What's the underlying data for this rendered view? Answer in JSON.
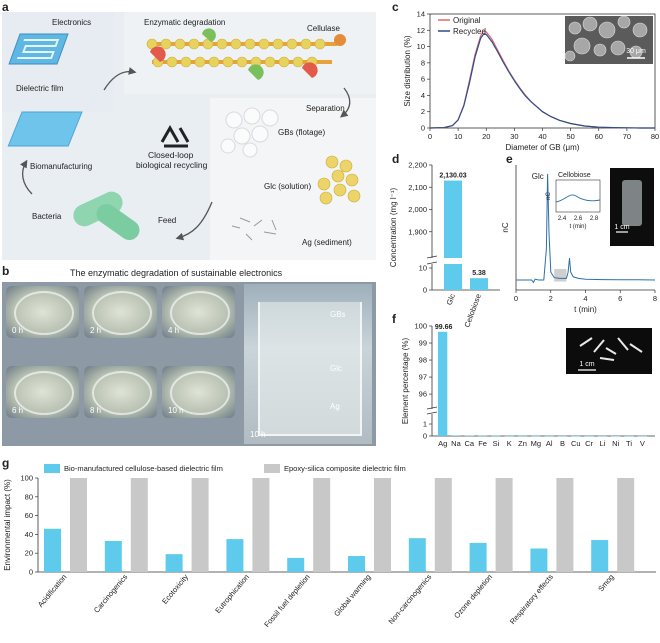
{
  "panels": {
    "a": "a",
    "b": "b",
    "c": "c",
    "d": "d",
    "e": "e",
    "f": "f",
    "g": "g"
  },
  "schematic": {
    "electronics": "Electronics",
    "enzymatic": "Enzymatic degradation",
    "cellulase": "Cellulase",
    "dielectric": "Dielectric film",
    "separation": "Separation",
    "closed_loop_1": "Closed-loop",
    "closed_loop_2": "biological recycling",
    "gbs": "GBs (flotage)",
    "biomanufacturing": "Biomanufacturing",
    "glc": "Glc (solution)",
    "bacteria": "Bacteria",
    "feed": "Feed",
    "ag": "Ag (sediment)",
    "recycle_icon": "recycle-icon"
  },
  "photos": {
    "title": "The enzymatic degradation of sustainable electronics",
    "times": [
      "0 h",
      "2 h",
      "4 h",
      "6 h",
      "8 h",
      "10 h"
    ],
    "beaker_time": "10 h",
    "beaker_labels": [
      "GBs",
      "Glc",
      "Ag"
    ]
  },
  "colors": {
    "original": "#e4656b",
    "recycled": "#2c4f8a",
    "cyan": "#5fcbec",
    "gray": "#c8c8c8",
    "ion_trace": "#2e6fa8"
  },
  "chart_data": [
    {
      "id": "c",
      "type": "line",
      "xlabel": "Diameter of GB (μm)",
      "ylabel": "Size distribution (%)",
      "xlim": [
        0,
        80
      ],
      "ylim": [
        0,
        14
      ],
      "xticks": [
        "0",
        "10",
        "20",
        "30",
        "40",
        "50",
        "60",
        "70",
        "80"
      ],
      "yticks": [
        "0",
        "2",
        "4",
        "6",
        "8",
        "10",
        "12",
        "14"
      ],
      "legend": "top-left",
      "inset_scale": "30 μm",
      "series": [
        {
          "name": "Original",
          "x": [
            0,
            5,
            8,
            10,
            12,
            14,
            16,
            18,
            19,
            20,
            22,
            24,
            26,
            28,
            30,
            32,
            34,
            36,
            38,
            40,
            43,
            46,
            50,
            55,
            60,
            65,
            70,
            75,
            80
          ],
          "y": [
            0,
            0.05,
            0.3,
            1.0,
            2.8,
            5.8,
            9.0,
            11.3,
            11.9,
            11.8,
            10.9,
            9.6,
            8.3,
            7.0,
            5.9,
            4.9,
            4.0,
            3.2,
            2.6,
            2.0,
            1.4,
            0.95,
            0.55,
            0.25,
            0.1,
            0.05,
            0.02,
            0,
            0
          ]
        },
        {
          "name": "Recycled",
          "x": [
            0,
            5,
            8,
            10,
            12,
            14,
            16,
            18,
            19,
            20,
            22,
            24,
            26,
            28,
            30,
            32,
            34,
            36,
            38,
            40,
            43,
            46,
            50,
            55,
            60,
            65,
            70,
            75,
            80
          ],
          "y": [
            0,
            0.05,
            0.3,
            1.0,
            2.7,
            5.5,
            8.7,
            11.0,
            11.5,
            11.5,
            10.6,
            9.4,
            8.1,
            6.9,
            5.8,
            4.8,
            3.9,
            3.2,
            2.6,
            2.0,
            1.4,
            0.95,
            0.55,
            0.25,
            0.1,
            0.05,
            0.02,
            0,
            0
          ]
        }
      ]
    },
    {
      "id": "d",
      "type": "bar",
      "ylabel": "Concentration (mg l⁻¹)",
      "categories": [
        "Glc",
        "Cellobiose"
      ],
      "values": [
        2130.03,
        5.38
      ],
      "value_labels": [
        "2,130.03",
        "5.38"
      ],
      "yticks_upper": [
        "1,900",
        "2,000",
        "2,100",
        "2,200"
      ],
      "yticks_lower": [
        "0",
        "10"
      ],
      "axis_break": true
    },
    {
      "id": "e",
      "type": "line",
      "xlabel": "t (min)",
      "ylabel": "nC",
      "xticks": [
        "0",
        "2",
        "4",
        "6",
        "8"
      ],
      "xlim": [
        0,
        8
      ],
      "peak_labels": [
        "Glc",
        "Cellobiose"
      ],
      "inset_xlabel": "t (min)",
      "inset_ylabel": "nC",
      "inset_xticks": [
        "2.4",
        "2.6",
        "2.8"
      ],
      "scale": "1 cm",
      "x": [
        0,
        0.9,
        1.0,
        1.1,
        1.3,
        1.6,
        1.75,
        1.82,
        1.9,
        2.0,
        2.2,
        2.5,
        2.9,
        3.0,
        3.08,
        3.15,
        3.3,
        3.6,
        4,
        5,
        6,
        7,
        8
      ],
      "y": [
        0,
        0,
        -3,
        1,
        0,
        0,
        40,
        135,
        60,
        10,
        3,
        2,
        2,
        10,
        28,
        10,
        4,
        2,
        1,
        0.5,
        0.3,
        0.2,
        0
      ]
    },
    {
      "id": "f",
      "type": "bar",
      "ylabel": "Element percentage (%)",
      "categories": [
        "Ag",
        "Na",
        "Ca",
        "Fe",
        "Si",
        "K",
        "Zn",
        "Mg",
        "Al",
        "B",
        "Cu",
        "Cr",
        "Li",
        "Ni",
        "Ti",
        "V"
      ],
      "values": [
        99.66,
        0.05,
        0.04,
        0.03,
        0.03,
        0.02,
        0.02,
        0.02,
        0.02,
        0.01,
        0.01,
        0.01,
        0.01,
        0.01,
        0.01,
        0.01
      ],
      "value_labels": [
        "99.66"
      ],
      "yticks_upper": [
        "96",
        "97",
        "98",
        "99",
        "100"
      ],
      "yticks_lower": [
        "0",
        "1"
      ],
      "axis_break": true,
      "scale": "1 cm"
    },
    {
      "id": "g",
      "type": "bar",
      "ylabel": "Environmental impact (%)",
      "ylim": [
        0,
        100
      ],
      "yticks": [
        "0",
        "20",
        "40",
        "60",
        "80",
        "100"
      ],
      "legend": "top",
      "categories": [
        "Acidification",
        "Carcinogenics",
        "Ecotoxicity",
        "Eutrophication",
        "Fossil fuel depletion",
        "Global warming",
        "Non-carcinogenics",
        "Ozone depletion",
        "Respiratory effects",
        "Smog"
      ],
      "series": [
        {
          "name": "Bio-manufactured cellulose-based dielectric film",
          "values": [
            46,
            33,
            19,
            35,
            15,
            17,
            36,
            31,
            25,
            34
          ]
        },
        {
          "name": "Epoxy-silica composite dielectric film",
          "values": [
            100,
            100,
            100,
            100,
            100,
            100,
            100,
            100,
            100,
            100
          ]
        }
      ]
    }
  ]
}
